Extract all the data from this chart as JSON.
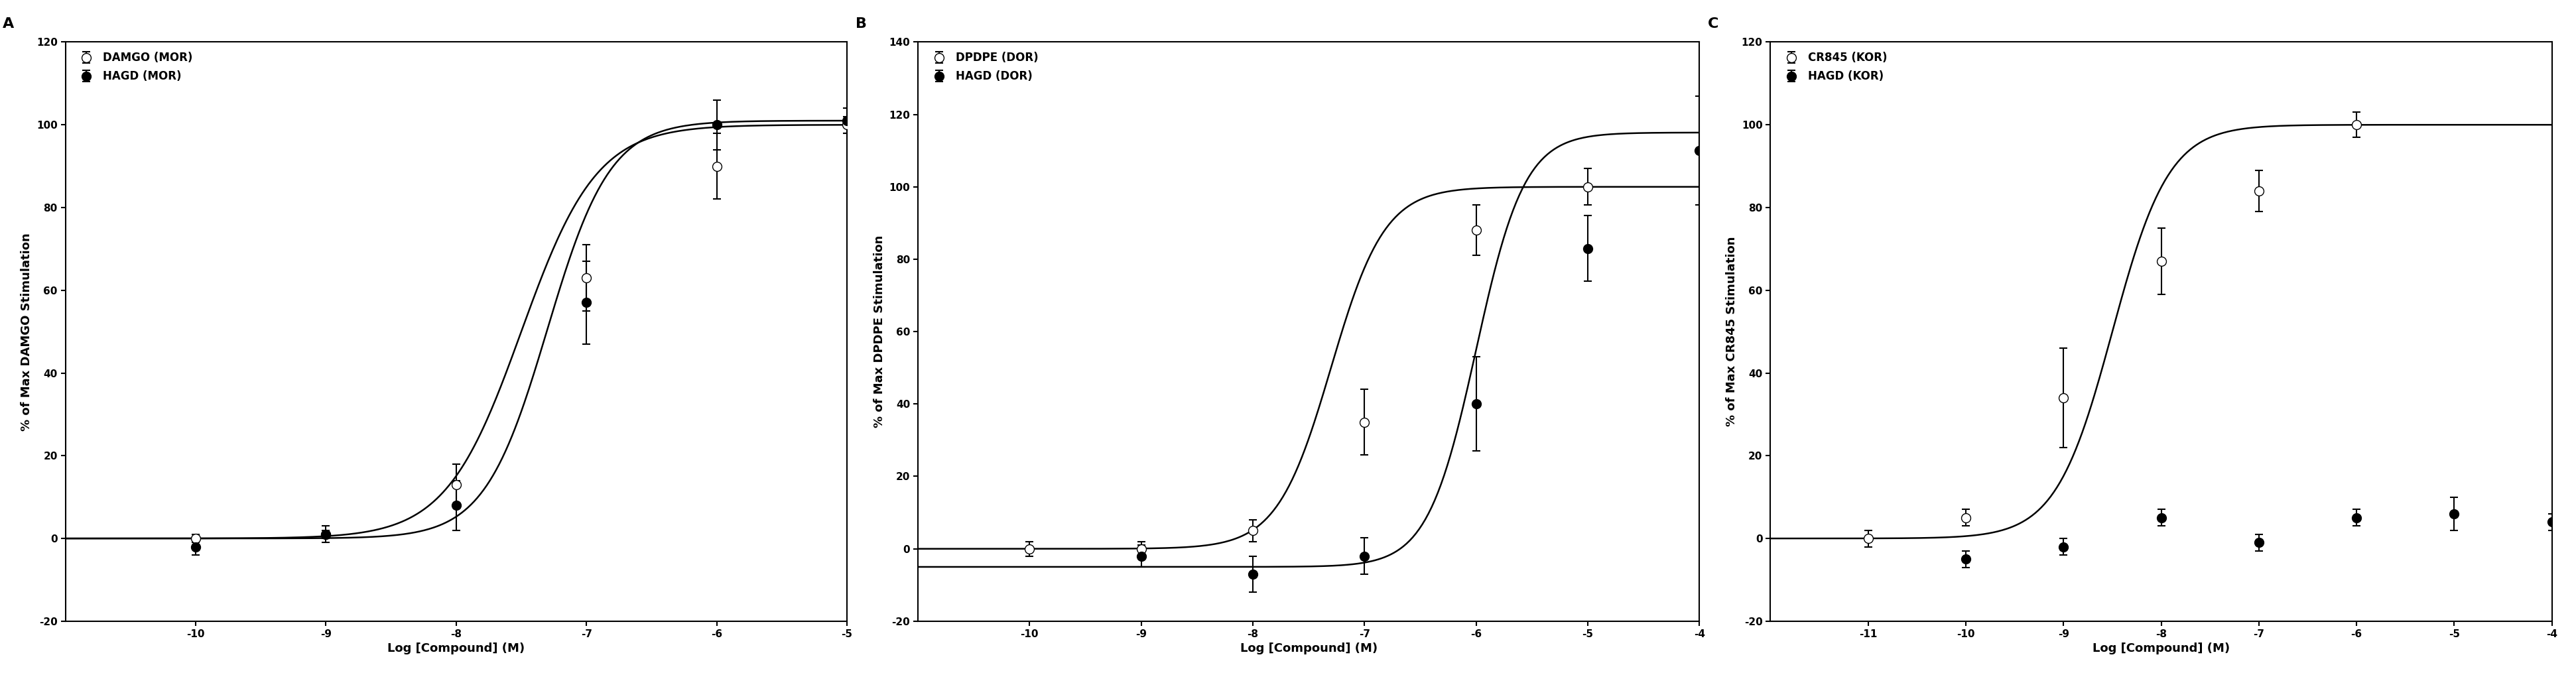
{
  "panel_A": {
    "label": "A",
    "ylabel": "% of Max DAMGO Stimulation",
    "xlabel": "Log [Compound] (M)",
    "xlim": [
      -11,
      -5
    ],
    "xticks": [
      -10,
      -9,
      -8,
      -7,
      -6,
      -5
    ],
    "ylim": [
      -20,
      120
    ],
    "yticks": [
      -20,
      0,
      20,
      40,
      60,
      80,
      100,
      120
    ],
    "series": [
      {
        "label": "DAMGO (MOR)",
        "x": [
          -10,
          -9,
          -8,
          -7,
          -6,
          -5
        ],
        "y": [
          0,
          1,
          13,
          63,
          90,
          100
        ],
        "yerr": [
          1,
          1,
          5,
          8,
          8,
          2
        ],
        "filled": false,
        "ec50_log": -7.5,
        "hill": 1.5,
        "bottom": 0,
        "top": 100
      },
      {
        "label": "HAGD (MOR)",
        "x": [
          -10,
          -9,
          -8,
          -7,
          -6,
          -5
        ],
        "y": [
          -2,
          1,
          8,
          57,
          100,
          101
        ],
        "yerr": [
          2,
          2,
          6,
          10,
          6,
          3
        ],
        "filled": true,
        "ec50_log": -7.3,
        "hill": 1.8,
        "bottom": 0,
        "top": 101
      }
    ]
  },
  "panel_B": {
    "label": "B",
    "ylabel": "% of Max DPDPE Stimulation",
    "xlabel": "Log [Compound] (M)",
    "xlim": [
      -11,
      -4
    ],
    "xticks": [
      -10,
      -9,
      -8,
      -7,
      -6,
      -5,
      -4
    ],
    "ylim": [
      -20,
      140
    ],
    "yticks": [
      -20,
      0,
      20,
      40,
      60,
      80,
      100,
      120,
      140
    ],
    "series": [
      {
        "label": "DPDPE (DOR)",
        "x": [
          -10,
          -9,
          -8,
          -7,
          -6,
          -5
        ],
        "y": [
          0,
          0,
          5,
          35,
          88,
          100
        ],
        "yerr": [
          2,
          2,
          3,
          9,
          7,
          5
        ],
        "filled": false,
        "ec50_log": -7.3,
        "hill": 1.8,
        "bottom": 0,
        "top": 100
      },
      {
        "label": "HAGD (DOR)",
        "x": [
          -9,
          -8,
          -7,
          -6,
          -5,
          -4
        ],
        "y": [
          -2,
          -7,
          -2,
          40,
          83,
          110
        ],
        "yerr": [
          3,
          5,
          5,
          13,
          9,
          15
        ],
        "filled": true,
        "ec50_log": -6.0,
        "hill": 2.0,
        "bottom": -5,
        "top": 115
      }
    ]
  },
  "panel_C": {
    "label": "C",
    "ylabel": "% of Max CR845 Stimulation",
    "xlabel": "Log [Compound] (M)",
    "xlim": [
      -12,
      -4
    ],
    "xticks": [
      -11,
      -10,
      -9,
      -8,
      -7,
      -6,
      -5,
      -4
    ],
    "ylim": [
      -20,
      120
    ],
    "yticks": [
      -20,
      0,
      20,
      40,
      60,
      80,
      100,
      120
    ],
    "series": [
      {
        "label": "CR845 (KOR)",
        "x": [
          -11,
          -10,
          -9,
          -8,
          -7,
          -6
        ],
        "y": [
          0,
          5,
          34,
          67,
          84,
          100
        ],
        "yerr": [
          2,
          2,
          12,
          8,
          5,
          3
        ],
        "filled": false,
        "ec50_log": -8.5,
        "hill": 1.5,
        "bottom": 0,
        "top": 100
      },
      {
        "label": "HAGD (KOR)",
        "x": [
          -10,
          -9,
          -8,
          -7,
          -6,
          -5,
          -4
        ],
        "y": [
          -5,
          -2,
          5,
          -1,
          5,
          6,
          4
        ],
        "yerr": [
          2,
          2,
          2,
          2,
          2,
          4,
          2
        ],
        "filled": true,
        "ec50_log": null,
        "hill": null,
        "bottom": null,
        "top": null
      }
    ]
  },
  "marker_size": 10,
  "line_width": 1.8,
  "capsize": 4,
  "elinewidth": 1.5,
  "font_size_label": 13,
  "font_size_tick": 11,
  "font_size_legend": 12,
  "font_size_panel_label": 16,
  "background_color": "#ffffff",
  "line_color": "#000000",
  "marker_edge_color": "#000000",
  "marker_face_open": "#ffffff",
  "marker_face_filled": "#000000"
}
